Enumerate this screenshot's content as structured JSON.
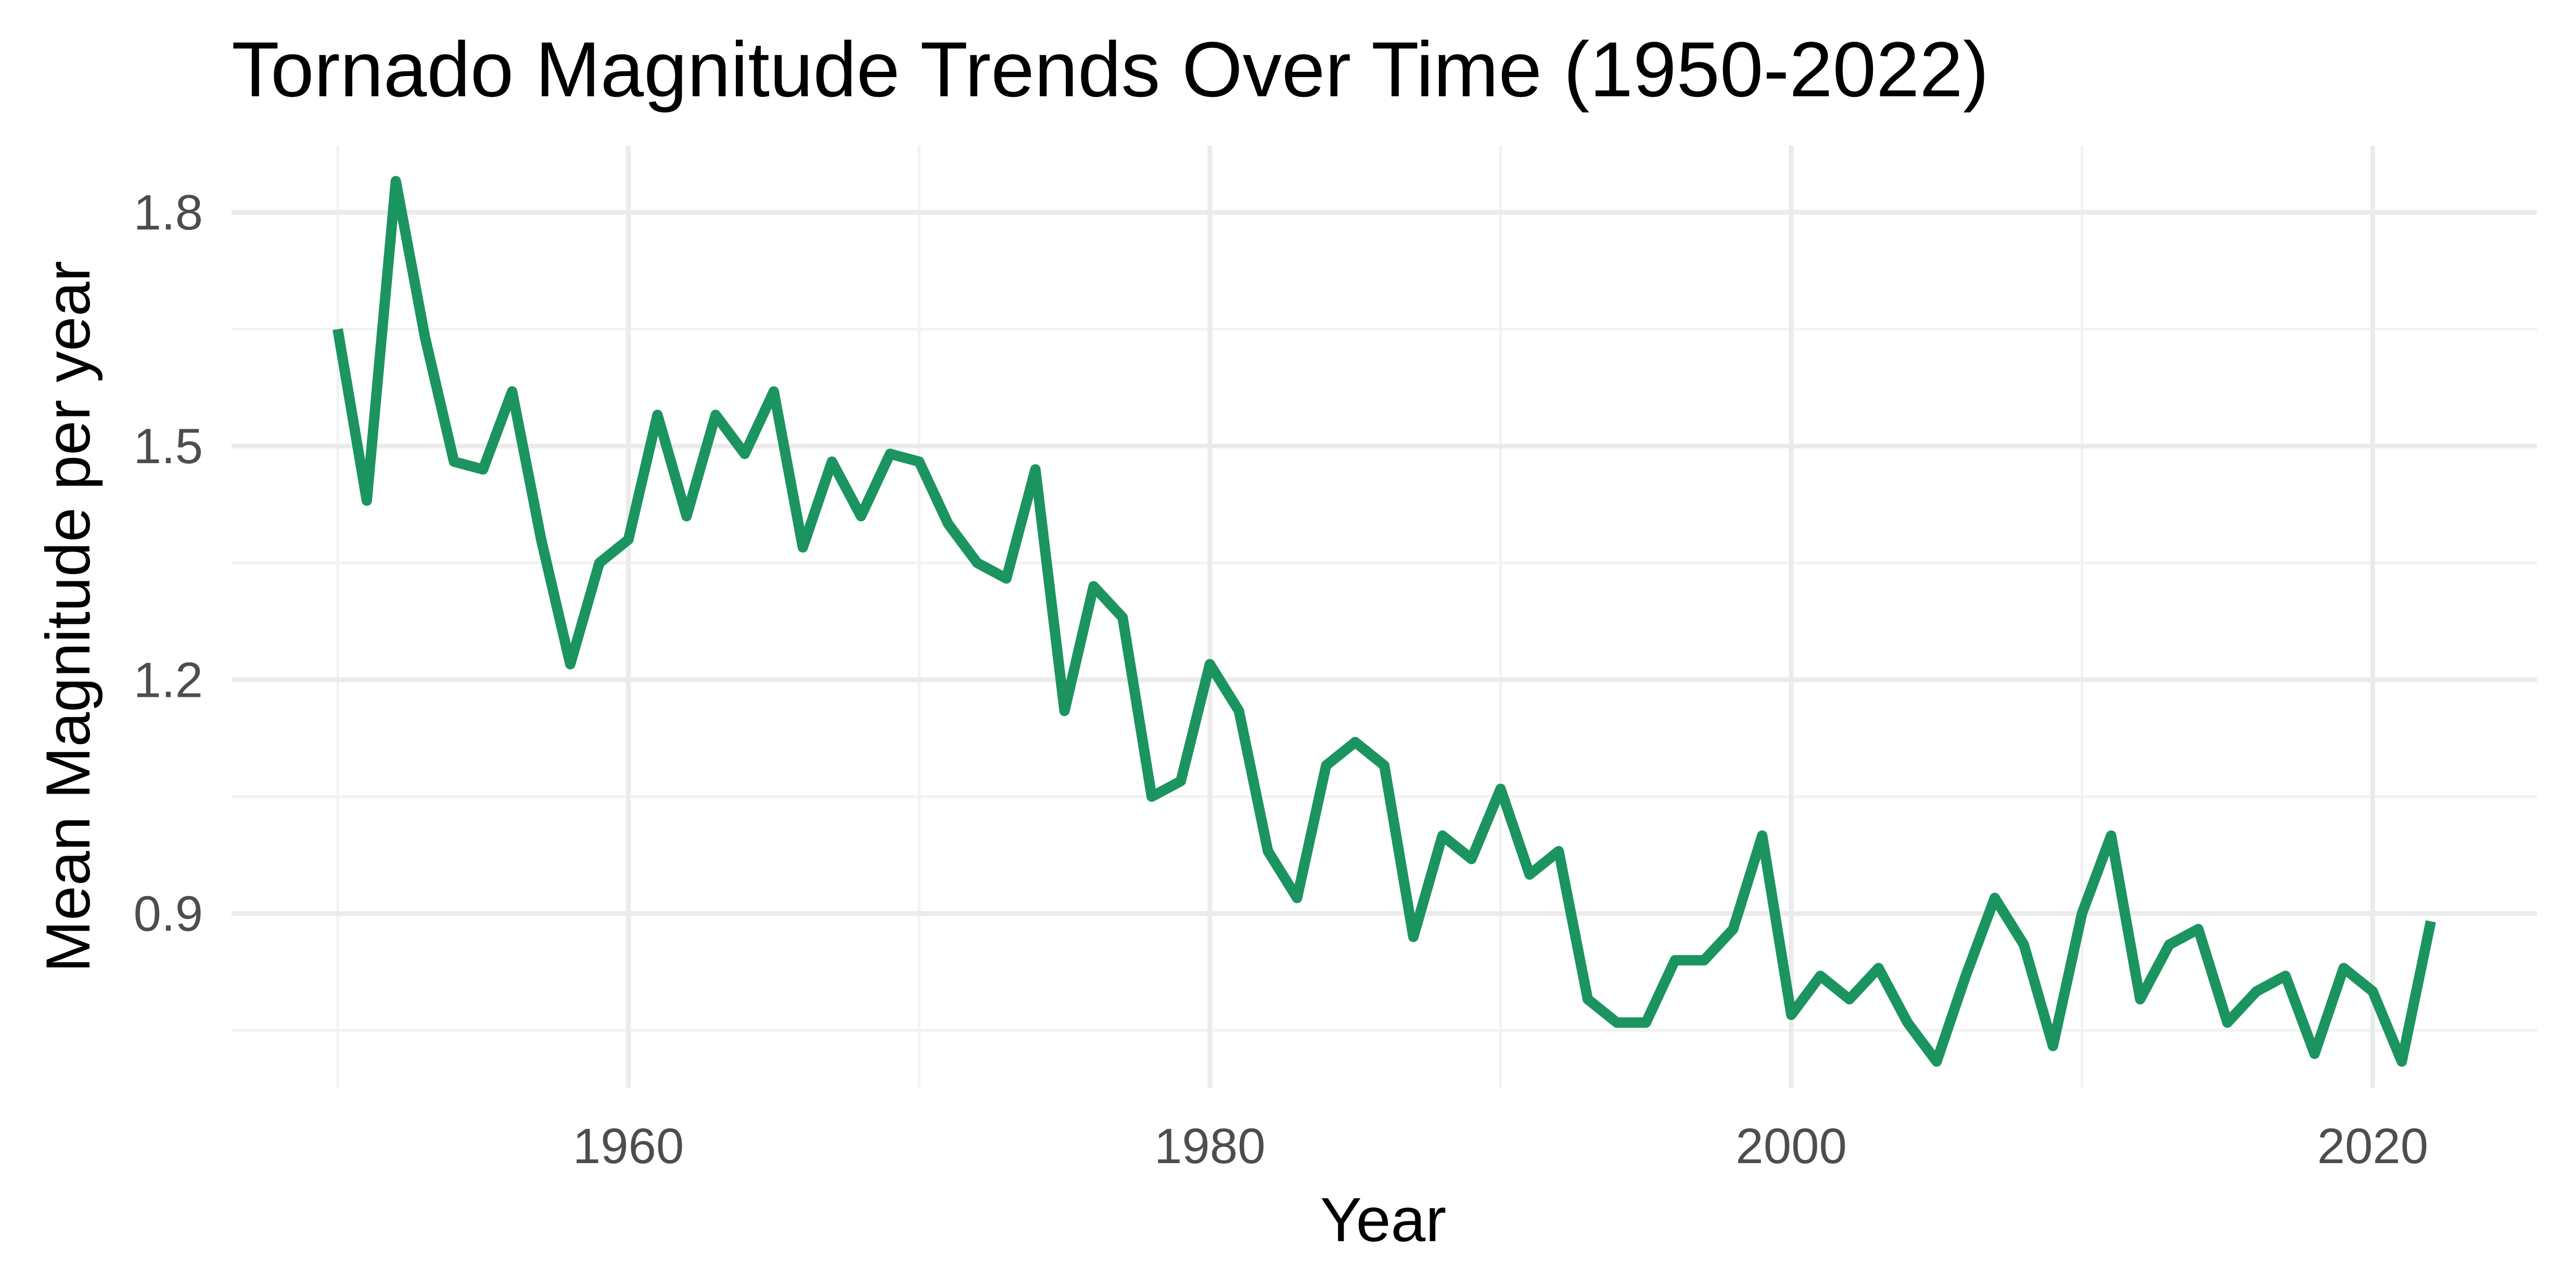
{
  "chart_data": {
    "type": "line",
    "title": "Tornado Magnitude Trends Over Time (1950-2022)",
    "xlabel": "Year",
    "ylabel": "Mean Magnitude per year",
    "xlim": [
      1946.35,
      2025.65
    ],
    "ylim": [
      0.6765,
      1.8855
    ],
    "x_ticks": [
      1960,
      1980,
      2000,
      2020
    ],
    "y_ticks": [
      0.9,
      1.2,
      1.5,
      1.8
    ],
    "grid": true,
    "legend": "none",
    "series": [
      {
        "color": "#1b9460",
        "x": [
          1950,
          1951,
          1952,
          1953,
          1954,
          1955,
          1956,
          1957,
          1958,
          1959,
          1960,
          1961,
          1962,
          1963,
          1964,
          1965,
          1966,
          1967,
          1968,
          1969,
          1970,
          1971,
          1972,
          1973,
          1974,
          1975,
          1976,
          1977,
          1978,
          1979,
          1980,
          1981,
          1982,
          1983,
          1984,
          1985,
          1986,
          1987,
          1988,
          1989,
          1990,
          1991,
          1992,
          1993,
          1994,
          1995,
          1996,
          1997,
          1998,
          1999,
          2000,
          2001,
          2002,
          2003,
          2004,
          2005,
          2006,
          2007,
          2008,
          2009,
          2010,
          2011,
          2012,
          2013,
          2014,
          2015,
          2016,
          2017,
          2018,
          2019,
          2020,
          2021,
          2022
        ],
        "values": [
          1.65,
          1.43,
          1.84,
          1.64,
          1.48,
          1.47,
          1.57,
          1.38,
          1.22,
          1.35,
          1.38,
          1.54,
          1.41,
          1.54,
          1.49,
          1.57,
          1.37,
          1.48,
          1.41,
          1.49,
          1.48,
          1.4,
          1.35,
          1.33,
          1.47,
          1.16,
          1.32,
          1.28,
          1.05,
          1.07,
          1.22,
          1.16,
          0.98,
          0.92,
          1.09,
          1.12,
          1.09,
          0.87,
          1.0,
          0.97,
          1.06,
          0.95,
          0.98,
          0.79,
          0.76,
          0.76,
          0.84,
          0.84,
          0.88,
          1.0,
          0.77,
          0.82,
          0.79,
          0.83,
          0.76,
          0.71,
          0.82,
          0.92,
          0.86,
          0.73,
          0.9,
          1.0,
          0.79,
          0.86,
          0.88,
          0.76,
          0.8,
          0.82,
          0.72,
          0.83,
          0.8,
          0.71,
          0.89
        ]
      }
    ]
  }
}
